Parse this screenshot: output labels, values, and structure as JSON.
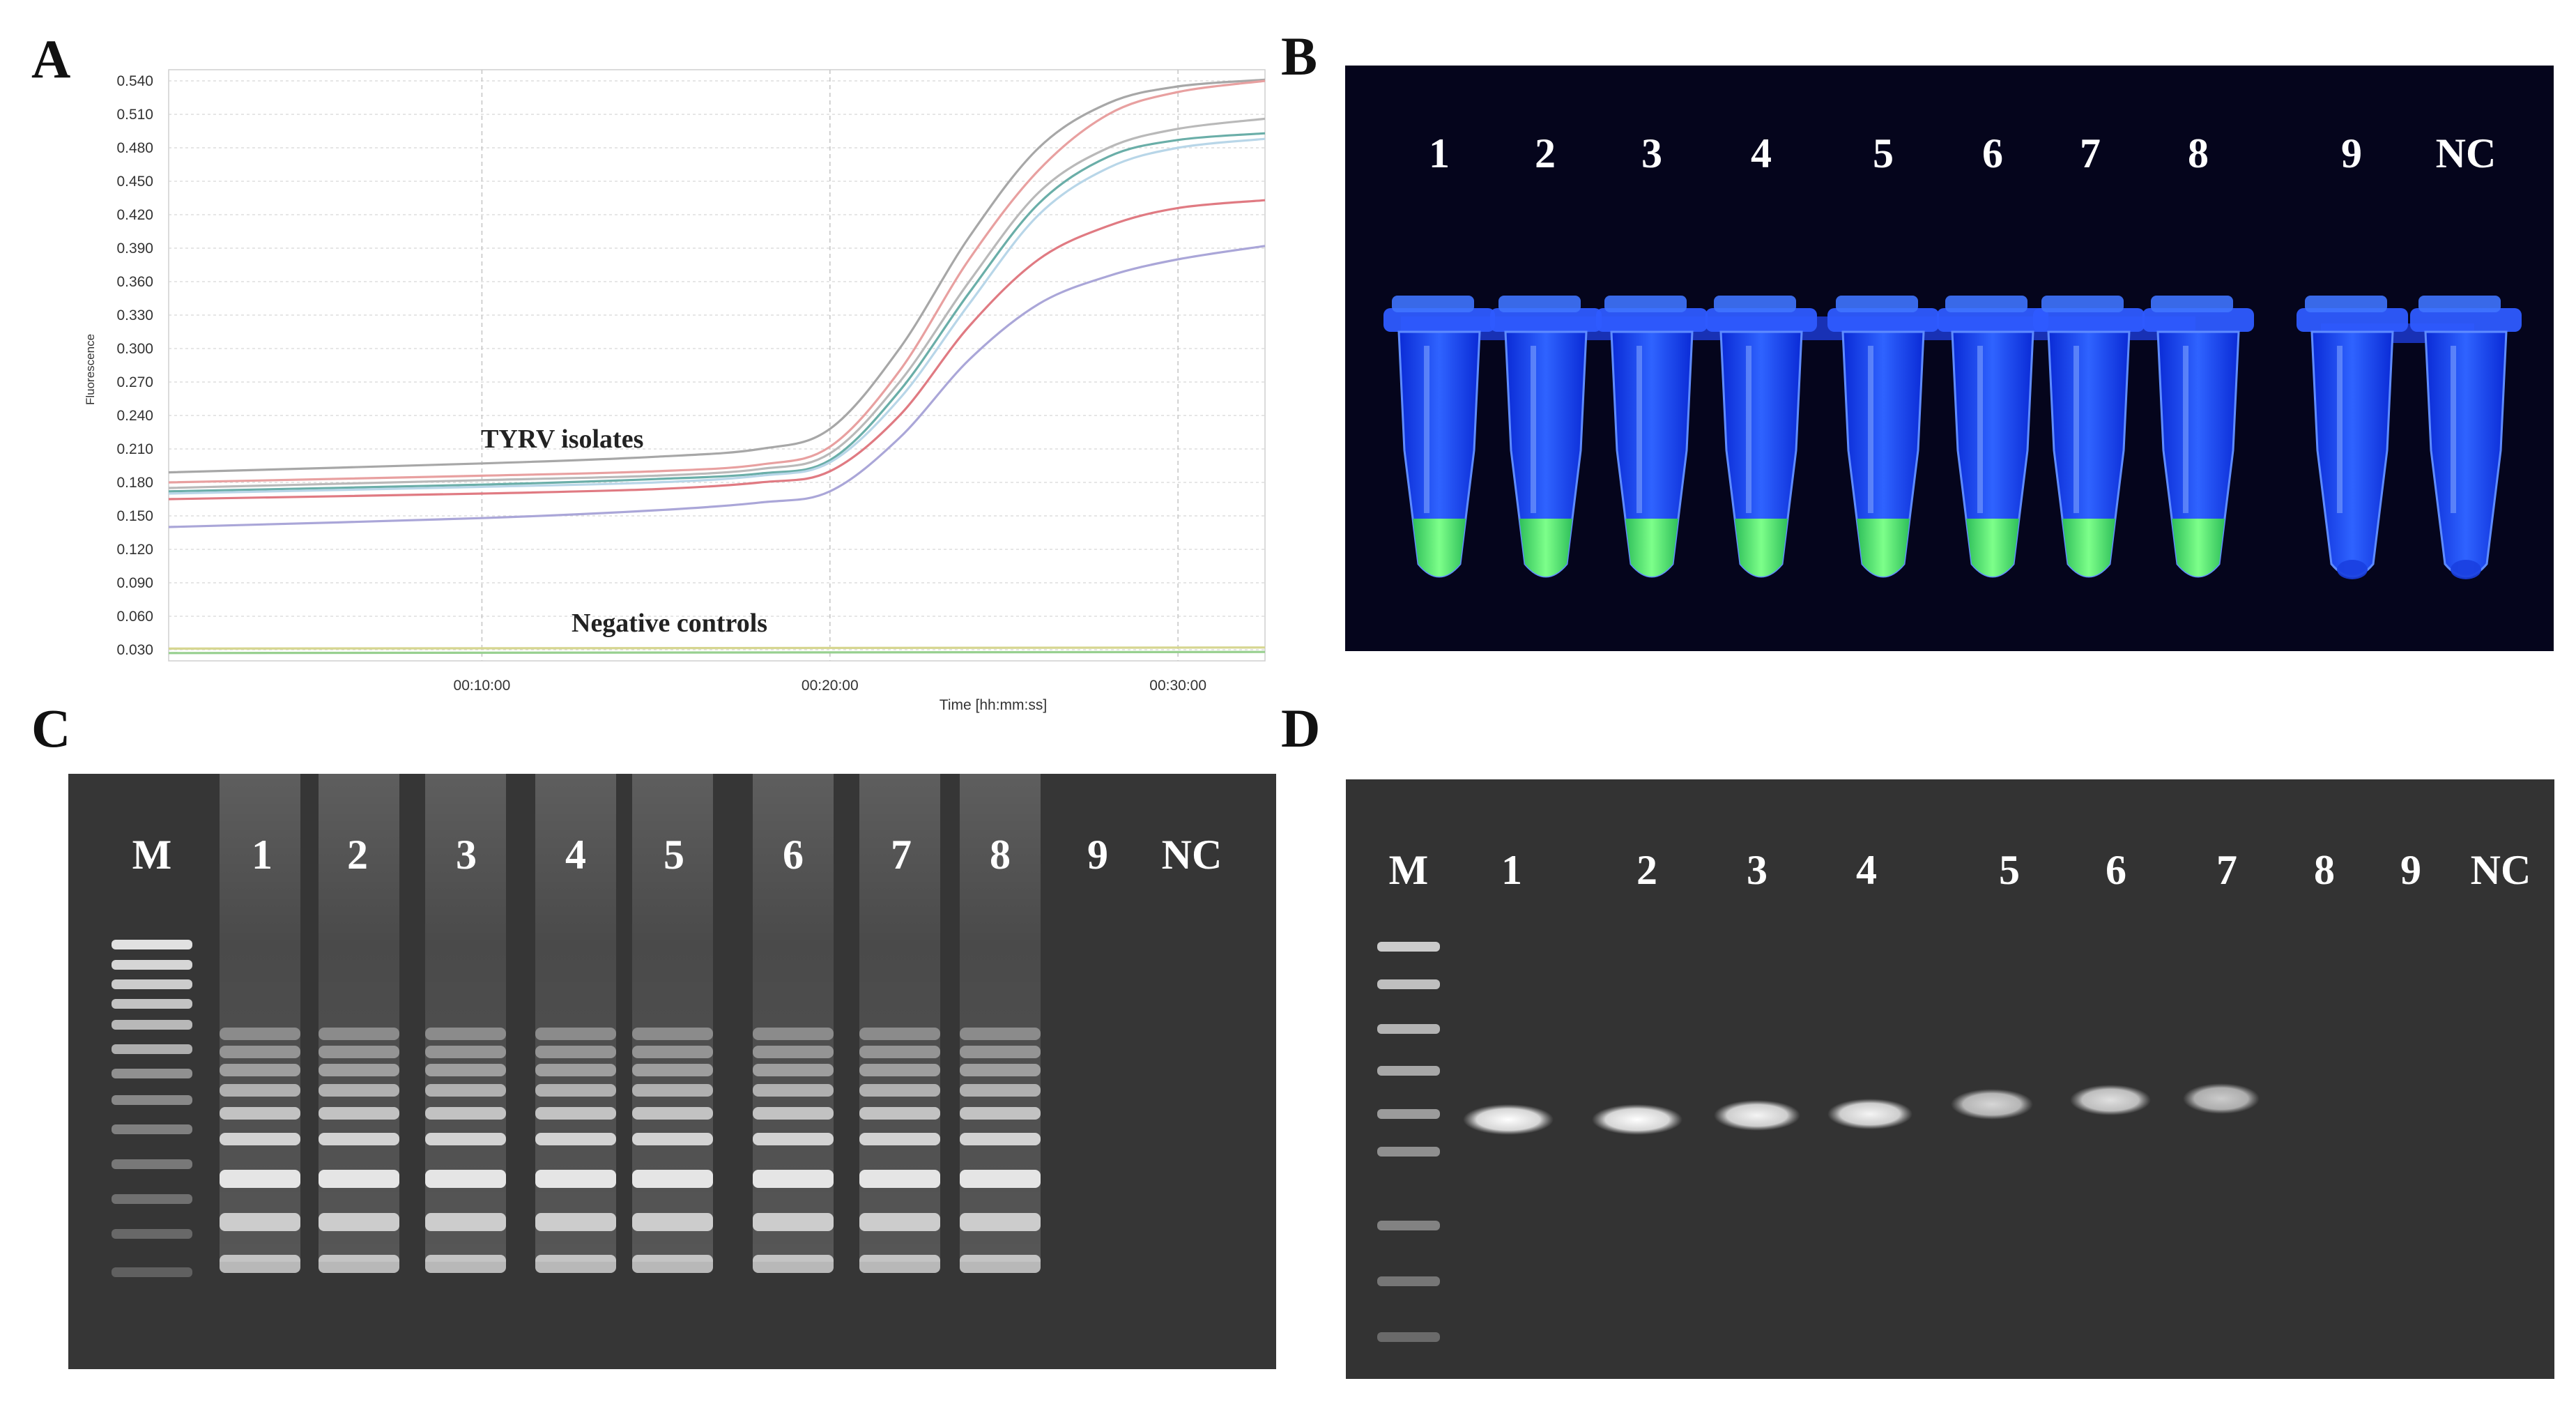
{
  "figure": {
    "panels": {
      "A": "A",
      "B": "B",
      "C": "C",
      "D": "D"
    }
  },
  "chart_data": {
    "type": "line",
    "xlabel": "Time [hh:mm:ss]",
    "ylabel": "Fluorescence",
    "x_ticks": [
      "00:10:00",
      "00:20:00",
      "00:30:00"
    ],
    "y_ticks": [
      "0.540",
      "0.510",
      "0.480",
      "0.450",
      "0.420",
      "0.390",
      "0.360",
      "0.330",
      "0.300",
      "0.270",
      "0.240",
      "0.210",
      "0.180",
      "0.150",
      "0.120",
      "0.090",
      "0.060",
      "0.030"
    ],
    "ylim": [
      0.02,
      0.55
    ],
    "xlim_minutes": [
      1,
      32.5
    ],
    "annotations": [
      "TYRV isolates",
      "Negative controls"
    ],
    "grid": true,
    "series": [
      {
        "color": "#a7a7a7",
        "values": [
          [
            1,
            0.189
          ],
          [
            10,
            0.197
          ],
          [
            15,
            0.203
          ],
          [
            18,
            0.21
          ],
          [
            20,
            0.228
          ],
          [
            22,
            0.3
          ],
          [
            24,
            0.4
          ],
          [
            26,
            0.48
          ],
          [
            28,
            0.52
          ],
          [
            30,
            0.535
          ],
          [
            32.5,
            0.541
          ]
        ]
      },
      {
        "color": "#e8a0a0",
        "values": [
          [
            1,
            0.18
          ],
          [
            10,
            0.186
          ],
          [
            15,
            0.19
          ],
          [
            18,
            0.196
          ],
          [
            20,
            0.212
          ],
          [
            22,
            0.28
          ],
          [
            24,
            0.38
          ],
          [
            26,
            0.46
          ],
          [
            28,
            0.51
          ],
          [
            30,
            0.53
          ],
          [
            32.5,
            0.54
          ]
        ]
      },
      {
        "color": "#b9b9b9",
        "values": [
          [
            1,
            0.175
          ],
          [
            10,
            0.182
          ],
          [
            15,
            0.186
          ],
          [
            18,
            0.192
          ],
          [
            20,
            0.206
          ],
          [
            22,
            0.27
          ],
          [
            24,
            0.36
          ],
          [
            26,
            0.44
          ],
          [
            28,
            0.48
          ],
          [
            30,
            0.497
          ],
          [
            32.5,
            0.506
          ]
        ]
      },
      {
        "color": "#6aaea8",
        "values": [
          [
            1,
            0.172
          ],
          [
            10,
            0.178
          ],
          [
            15,
            0.183
          ],
          [
            18,
            0.188
          ],
          [
            20,
            0.2
          ],
          [
            22,
            0.262
          ],
          [
            24,
            0.35
          ],
          [
            26,
            0.43
          ],
          [
            28,
            0.472
          ],
          [
            30,
            0.487
          ],
          [
            32.5,
            0.493
          ]
        ]
      },
      {
        "color": "#b8d6e8",
        "values": [
          [
            1,
            0.17
          ],
          [
            10,
            0.176
          ],
          [
            15,
            0.18
          ],
          [
            18,
            0.186
          ],
          [
            20,
            0.198
          ],
          [
            22,
            0.255
          ],
          [
            24,
            0.34
          ],
          [
            26,
            0.42
          ],
          [
            28,
            0.462
          ],
          [
            30,
            0.48
          ],
          [
            32.5,
            0.488
          ]
        ]
      },
      {
        "color": "#e07a82",
        "values": [
          [
            1,
            0.165
          ],
          [
            10,
            0.17
          ],
          [
            15,
            0.174
          ],
          [
            18,
            0.18
          ],
          [
            20,
            0.19
          ],
          [
            22,
            0.24
          ],
          [
            24,
            0.32
          ],
          [
            26,
            0.38
          ],
          [
            28,
            0.41
          ],
          [
            30,
            0.426
          ],
          [
            32.5,
            0.433
          ]
        ]
      },
      {
        "color": "#aaa6d8",
        "values": [
          [
            1,
            0.14
          ],
          [
            10,
            0.148
          ],
          [
            15,
            0.155
          ],
          [
            18,
            0.162
          ],
          [
            20,
            0.172
          ],
          [
            22,
            0.22
          ],
          [
            24,
            0.29
          ],
          [
            26,
            0.34
          ],
          [
            28,
            0.365
          ],
          [
            30,
            0.38
          ],
          [
            32.5,
            0.392
          ]
        ]
      },
      {
        "color": "#98d090",
        "values": [
          [
            1,
            0.027
          ],
          [
            32.5,
            0.028
          ]
        ]
      },
      {
        "color": "#d6d690",
        "values": [
          [
            1,
            0.031
          ],
          [
            32.5,
            0.032
          ]
        ]
      }
    ]
  },
  "panelB": {
    "lanes": [
      "1",
      "2",
      "3",
      "4",
      "5",
      "6",
      "7",
      "8",
      "9",
      "NC"
    ]
  },
  "panelC": {
    "lanes": [
      "M",
      "1",
      "2",
      "3",
      "4",
      "5",
      "6",
      "7",
      "8",
      "9",
      "NC"
    ]
  },
  "panelD": {
    "lanes": [
      "M",
      "1",
      "2",
      "3",
      "4",
      "5",
      "6",
      "7",
      "8",
      "9",
      "NC"
    ]
  }
}
